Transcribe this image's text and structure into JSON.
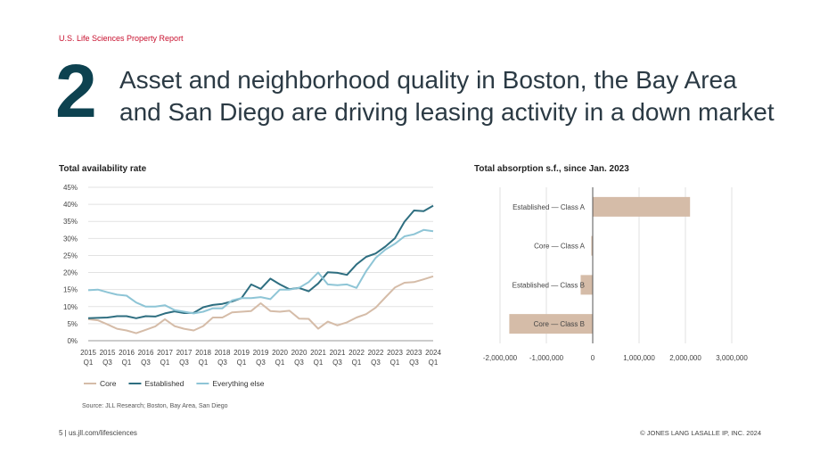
{
  "header": {
    "report": "U.S. Life Sciences Property Report",
    "number": "2",
    "headline_line1": "Asset and neighborhood quality in Boston, the Bay Area",
    "headline_line2": "and San Diego are driving leasing activity in a down market"
  },
  "colors": {
    "core": "#d5bca8",
    "established": "#2e6e80",
    "everything_else": "#8ec5d6",
    "bar": "#d5bca8",
    "headline_number": "#0d4250",
    "accent": "#c8102e"
  },
  "chart_data": [
    {
      "type": "line",
      "title": "Total availability rate",
      "ylim": [
        0,
        45
      ],
      "yticks": [
        "0%",
        "5%",
        "10%",
        "15%",
        "20%",
        "25%",
        "30%",
        "35%",
        "40%",
        "45%"
      ],
      "xtick_years": [
        "2015",
        "2015",
        "2016",
        "2016",
        "2017",
        "2017",
        "2018",
        "2018",
        "2019",
        "2019",
        "2020",
        "2020",
        "2021",
        "2021",
        "2022",
        "2022",
        "2023",
        "2023",
        "2024"
      ],
      "xtick_quarters": [
        "Q1",
        "Q3",
        "Q1",
        "Q3",
        "Q1",
        "Q3",
        "Q1",
        "Q3",
        "Q1",
        "Q3",
        "Q1",
        "Q3",
        "Q1",
        "Q3",
        "Q1",
        "Q3",
        "Q1",
        "Q3",
        "Q1"
      ],
      "series": [
        {
          "name": "Core",
          "key": "core",
          "values": [
            6.3,
            6.0,
            4.8,
            3.5,
            3.0,
            2.2,
            3.2,
            4.2,
            6.3,
            4.3,
            3.5,
            3.0,
            4.3,
            6.8,
            6.8,
            8.3,
            8.5,
            8.7,
            11.0,
            8.7,
            8.5,
            8.8,
            6.5,
            6.4,
            3.5,
            5.6,
            4.5,
            5.4,
            6.8,
            7.8,
            9.7,
            12.7,
            15.6,
            17.0,
            17.2,
            18.0,
            18.9
          ]
        },
        {
          "name": "Established",
          "key": "established",
          "values": [
            6.6,
            6.7,
            6.8,
            7.2,
            7.2,
            6.6,
            7.2,
            7.1,
            8.0,
            8.6,
            8.1,
            8.2,
            9.8,
            10.5,
            10.8,
            11.5,
            12.5,
            16.5,
            15.2,
            18.2,
            16.5,
            15.1,
            15.5,
            14.5,
            16.8,
            20.1,
            19.9,
            19.3,
            22.4,
            24.6,
            25.6,
            27.6,
            30.0,
            34.9,
            38.2,
            38.0,
            39.6
          ]
        },
        {
          "name": "Everything else",
          "key": "everything_else",
          "values": [
            14.8,
            15.0,
            14.2,
            13.5,
            13.2,
            11.2,
            10.0,
            10.0,
            10.4,
            9.0,
            8.5,
            8.0,
            8.5,
            9.5,
            9.5,
            11.8,
            12.5,
            12.5,
            12.8,
            12.2,
            15.0,
            15.0,
            15.5,
            17.2,
            20.0,
            16.5,
            16.3,
            16.5,
            15.5,
            20.4,
            24.3,
            26.7,
            28.4,
            30.6,
            31.2,
            32.5,
            32.1
          ]
        }
      ]
    },
    {
      "type": "bar",
      "orientation": "horizontal",
      "title": "Total absorption s.f., since Jan. 2023",
      "categories": [
        "Established — Class A",
        "Core — Class A",
        "Established — Class B",
        "Core — Class B"
      ],
      "values": [
        2100000,
        -30000,
        -260000,
        -1800000
      ],
      "xlim": [
        -2000000,
        3000000
      ],
      "xticks": [
        "-2,000,000",
        "-1,000,000",
        "0",
        "1,000,000",
        "2,000,000",
        "3,000,000"
      ]
    }
  ],
  "source": "Source: JLL Research; Boston, Bay Area, San Diego",
  "footer": {
    "left": "5  |  us.jll.com/lifesciences",
    "right": "© JONES LANG LASALLE IP, INC. 2024"
  }
}
